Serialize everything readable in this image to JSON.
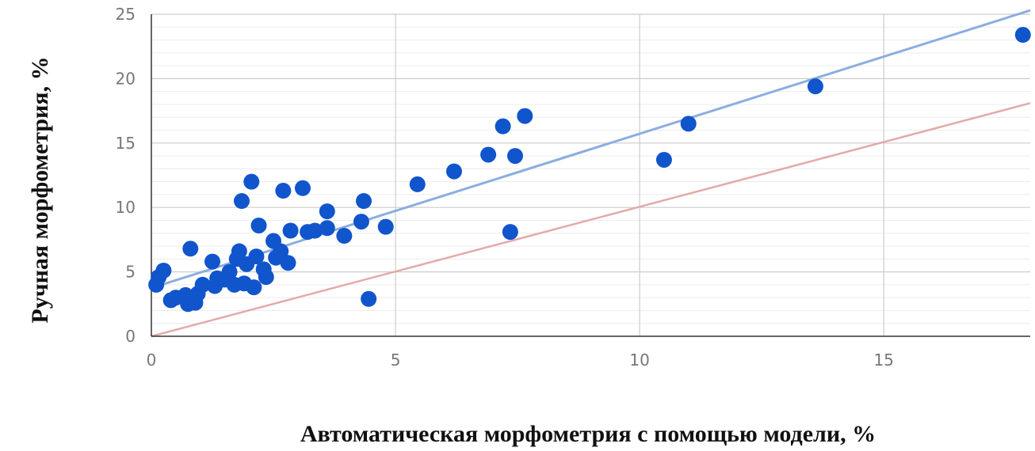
{
  "chart_data": {
    "type": "scatter",
    "xlabel": "Автоматическая морфометрия с помощью модели, %",
    "ylabel": "Ручная морфометрия, %",
    "xlim": [
      0,
      18
    ],
    "ylim": [
      0,
      25
    ],
    "x_ticks": [
      "0",
      "5",
      "10",
      "15"
    ],
    "y_ticks": [
      "0",
      "5",
      "10",
      "15",
      "20",
      "25"
    ],
    "x_tick_values": [
      0,
      5,
      10,
      15
    ],
    "y_tick_values": [
      0,
      5,
      10,
      15,
      20,
      25
    ],
    "grid": true,
    "colors": {
      "points": "#1155cc",
      "fit_line": "#8aaee0",
      "identity_line": "#e3aaa8",
      "major_grid": "#cccccc",
      "minor_grid": "#ececec",
      "axis": "#333333"
    },
    "series": [
      {
        "points": [
          [
            0.1,
            4.0
          ],
          [
            0.15,
            4.6
          ],
          [
            0.25,
            5.1
          ],
          [
            0.4,
            2.8
          ],
          [
            0.5,
            3.0
          ],
          [
            0.7,
            3.2
          ],
          [
            0.75,
            2.5
          ],
          [
            0.8,
            6.8
          ],
          [
            0.9,
            2.6
          ],
          [
            0.95,
            3.3
          ],
          [
            1.05,
            4.0
          ],
          [
            1.25,
            5.8
          ],
          [
            1.3,
            3.9
          ],
          [
            1.35,
            4.5
          ],
          [
            1.5,
            4.4
          ],
          [
            1.6,
            5.0
          ],
          [
            1.7,
            4.0
          ],
          [
            1.75,
            6.0
          ],
          [
            1.8,
            6.6
          ],
          [
            1.85,
            10.5
          ],
          [
            1.9,
            4.1
          ],
          [
            1.95,
            5.6
          ],
          [
            2.05,
            12.0
          ],
          [
            2.1,
            3.8
          ],
          [
            2.15,
            6.2
          ],
          [
            2.2,
            8.6
          ],
          [
            2.3,
            5.2
          ],
          [
            2.35,
            4.6
          ],
          [
            2.5,
            7.4
          ],
          [
            2.55,
            6.1
          ],
          [
            2.65,
            6.6
          ],
          [
            2.7,
            11.3
          ],
          [
            2.8,
            5.7
          ],
          [
            2.85,
            8.2
          ],
          [
            3.1,
            11.5
          ],
          [
            3.2,
            8.1
          ],
          [
            3.35,
            8.2
          ],
          [
            3.6,
            8.4
          ],
          [
            3.6,
            9.7
          ],
          [
            3.95,
            7.8
          ],
          [
            4.3,
            8.9
          ],
          [
            4.35,
            10.5
          ],
          [
            4.45,
            2.9
          ],
          [
            4.8,
            8.5
          ],
          [
            5.45,
            11.8
          ],
          [
            6.2,
            12.8
          ],
          [
            6.9,
            14.1
          ],
          [
            7.2,
            16.3
          ],
          [
            7.35,
            8.1
          ],
          [
            7.45,
            14.0
          ],
          [
            7.65,
            17.1
          ],
          [
            10.5,
            13.7
          ],
          [
            11.0,
            16.5
          ],
          [
            13.6,
            19.4
          ],
          [
            17.85,
            23.4
          ]
        ]
      }
    ],
    "fit_line": [
      [
        0,
        3.75
      ],
      [
        18,
        25.3
      ]
    ],
    "identity_line": [
      [
        0,
        0
      ],
      [
        18,
        18.1
      ]
    ]
  }
}
